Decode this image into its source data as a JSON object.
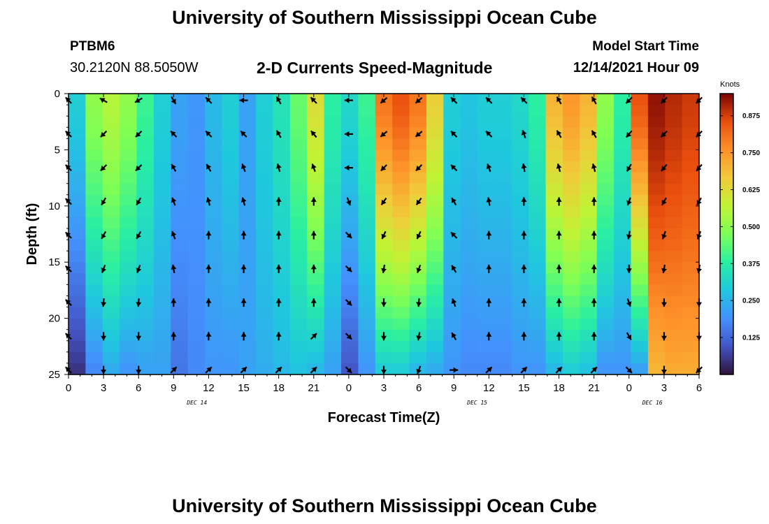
{
  "header": {
    "title": "University of Southern Mississippi Ocean Cube",
    "station": "PTBM6",
    "coordinates": "30.2120N  88.5050W",
    "subtitle": "2-D Currents Speed-Magnitude",
    "start_label": "Model Start Time",
    "start_value": "12/14/2021 Hour 09",
    "footer_title": "University of Southern Mississippi Ocean Cube"
  },
  "chart_data": {
    "type": "heatmap",
    "title": "2-D Currents Speed-Magnitude",
    "xlabel": "Forecast Time(Z)",
    "ylabel": "Depth (ft)",
    "xlim": [
      0,
      54
    ],
    "ylim": [
      0,
      25
    ],
    "x_tick_values": [
      0,
      3,
      6,
      9,
      12,
      15,
      18,
      21,
      24,
      27,
      30,
      33,
      36,
      39,
      42,
      45,
      48,
      51,
      54
    ],
    "x_tick_labels": [
      "0",
      "3",
      "6",
      "9",
      "12",
      "15",
      "18",
      "21",
      "0",
      "3",
      "6",
      "9",
      "12",
      "15",
      "18",
      "21",
      "0",
      "3",
      "6"
    ],
    "y_tick_values": [
      0,
      5,
      10,
      15,
      20,
      25
    ],
    "y_tick_labels": [
      "0",
      "5",
      "10",
      "15",
      "20",
      "25"
    ],
    "date_labels": [
      {
        "text": "DEC 14",
        "x": 11
      },
      {
        "text": "DEC 15",
        "x": 35
      },
      {
        "text": "DEC 16",
        "x": 50
      }
    ],
    "colorbar": {
      "label": "Knots",
      "range": [
        0,
        0.95
      ],
      "ticks": [
        0.125,
        0.25,
        0.375,
        0.5,
        0.625,
        0.75,
        0.875
      ],
      "tick_labels": [
        "0.125",
        "0.250",
        "0.375",
        "0.500",
        "0.625",
        "0.750",
        "0.875"
      ]
    },
    "column_speed_profile": {
      "times": [
        0,
        1.5,
        3,
        4.5,
        6,
        7.5,
        9,
        10.5,
        12,
        13.5,
        15,
        16.5,
        18,
        19.5,
        21,
        22.5,
        24,
        25.5,
        27,
        28.5,
        30,
        31.5,
        33,
        34.5,
        36,
        37.5,
        39,
        40.5,
        42,
        43.5,
        45,
        46.5,
        48,
        49.5,
        51,
        52.5,
        54
      ],
      "surface": [
        0.3,
        0.5,
        0.55,
        0.5,
        0.4,
        0.3,
        0.22,
        0.2,
        0.26,
        0.3,
        0.22,
        0.3,
        0.35,
        0.45,
        0.62,
        0.38,
        0.32,
        0.4,
        0.8,
        0.85,
        0.8,
        0.65,
        0.3,
        0.28,
        0.3,
        0.3,
        0.32,
        0.38,
        0.7,
        0.75,
        0.7,
        0.5,
        0.38,
        0.85,
        0.93,
        0.9,
        0.88
      ],
      "bottom": [
        0.05,
        0.18,
        0.24,
        0.2,
        0.22,
        0.22,
        0.15,
        0.18,
        0.2,
        0.2,
        0.22,
        0.24,
        0.26,
        0.28,
        0.26,
        0.22,
        0.1,
        0.2,
        0.3,
        0.3,
        0.26,
        0.24,
        0.2,
        0.18,
        0.18,
        0.18,
        0.2,
        0.2,
        0.26,
        0.3,
        0.28,
        0.2,
        0.2,
        0.22,
        0.7,
        0.72,
        0.72
      ]
    },
    "vector_times": [
      0,
      3,
      6,
      9,
      12,
      15,
      18,
      21,
      24,
      27,
      30,
      33,
      36,
      39,
      42,
      45,
      48,
      51,
      54
    ],
    "vector_depths": [
      0,
      3,
      6,
      9,
      12,
      15,
      18,
      21,
      24
    ],
    "vector_directions_deg": [
      [
        315,
        315,
        315,
        315,
        315,
        315,
        315,
        315,
        315
      ],
      [
        300,
        225,
        225,
        210,
        210,
        200,
        185,
        180,
        180
      ],
      [
        240,
        225,
        225,
        210,
        210,
        200,
        185,
        180,
        180
      ],
      [
        150,
        315,
        330,
        340,
        340,
        350,
        0,
        0,
        45
      ],
      [
        315,
        315,
        330,
        345,
        0,
        0,
        0,
        0,
        45
      ],
      [
        270,
        315,
        340,
        345,
        0,
        0,
        0,
        0,
        45
      ],
      [
        330,
        330,
        345,
        0,
        0,
        0,
        0,
        0,
        45
      ],
      [
        315,
        320,
        340,
        0,
        0,
        0,
        0,
        45,
        45
      ],
      [
        270,
        270,
        270,
        160,
        135,
        135,
        135,
        135,
        135
      ],
      [
        230,
        230,
        225,
        215,
        205,
        190,
        180,
        180,
        180
      ],
      [
        230,
        230,
        225,
        215,
        205,
        200,
        185,
        190,
        200
      ],
      [
        315,
        315,
        315,
        330,
        315,
        330,
        340,
        330,
        90
      ],
      [
        315,
        315,
        340,
        350,
        0,
        0,
        0,
        0,
        45
      ],
      [
        315,
        340,
        350,
        0,
        0,
        0,
        0,
        0,
        45
      ],
      [
        330,
        330,
        345,
        0,
        0,
        0,
        0,
        0,
        45
      ],
      [
        330,
        330,
        345,
        0,
        0,
        0,
        0,
        0,
        45
      ],
      [
        225,
        220,
        210,
        200,
        190,
        180,
        160,
        150,
        135
      ],
      [
        225,
        225,
        220,
        210,
        200,
        190,
        180,
        180,
        180
      ],
      [
        225,
        225,
        220,
        210,
        200,
        190,
        180,
        180,
        225
      ]
    ]
  }
}
